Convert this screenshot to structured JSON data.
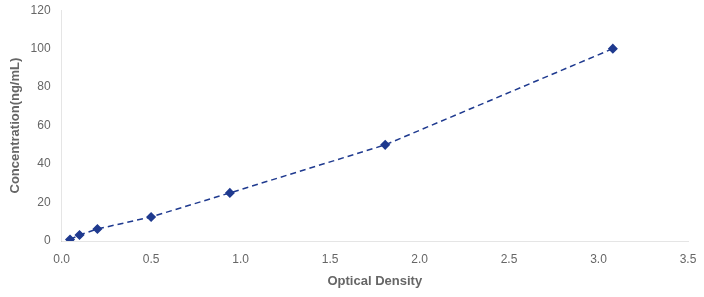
{
  "chart_data": {
    "type": "line",
    "x": [
      0.047,
      0.1,
      0.2,
      0.5,
      0.94,
      1.808,
      3.08
    ],
    "values": [
      0.781,
      3.125,
      6.25,
      12.5,
      25,
      50,
      100
    ],
    "color": "#1F3A8F",
    "marker": "diamond",
    "line_style": "dashed",
    "xlabel": "Optical Density",
    "ylabel": "Concentration(ng/mL)",
    "xlim": [
      0,
      3.5
    ],
    "ylim": [
      0,
      120
    ],
    "xticks": [
      {
        "value": 0,
        "label": "0.0"
      },
      0.5,
      {
        "value": 1,
        "label": "1.0"
      },
      1.5,
      {
        "value": 2,
        "label": "2.0"
      },
      2.5,
      {
        "value": 3,
        "label": "3.0"
      },
      3.5
    ],
    "yticks": [
      0,
      20,
      40,
      60,
      80,
      100,
      120
    ],
    "grid": false
  }
}
